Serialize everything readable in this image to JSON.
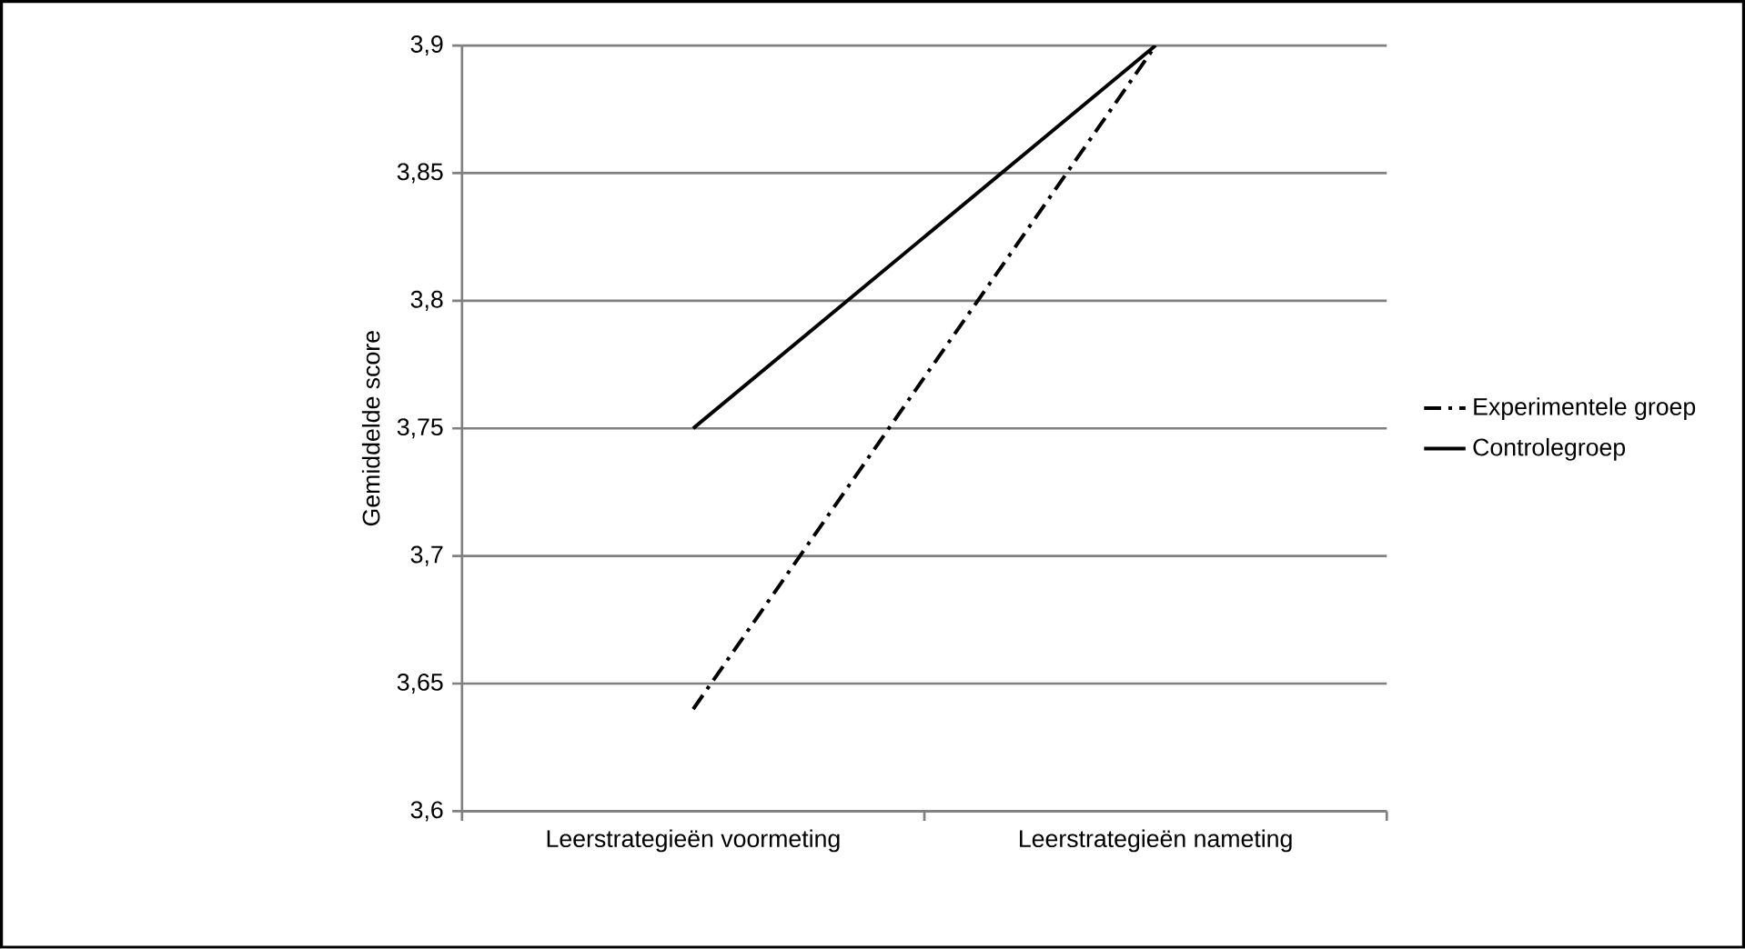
{
  "chart_data": {
    "type": "line",
    "ylabel": "Gemiddelde score",
    "categories": [
      "Leerstrategieën voormeting",
      "Leerstrategieën nameting"
    ],
    "series": [
      {
        "name": "Experimentele groep",
        "color": "#000000",
        "line_style": "dashed",
        "values": [
          3.64,
          3.9
        ]
      },
      {
        "name": "Controlegroep",
        "color": "#000000",
        "line_style": "solid",
        "values": [
          3.75,
          3.9
        ]
      }
    ],
    "ylim": [
      3.6,
      3.9
    ],
    "yticks": [
      {
        "value": 3.6,
        "label": "3,6"
      },
      {
        "value": 3.65,
        "label": "3,65"
      },
      {
        "value": 3.7,
        "label": "3,7"
      },
      {
        "value": 3.75,
        "label": "3,75"
      },
      {
        "value": 3.8,
        "label": "3,8"
      },
      {
        "value": 3.85,
        "label": "3,85"
      },
      {
        "value": 3.9,
        "label": "3,9"
      }
    ],
    "grid": "y",
    "legend": "right",
    "marker": "none"
  }
}
